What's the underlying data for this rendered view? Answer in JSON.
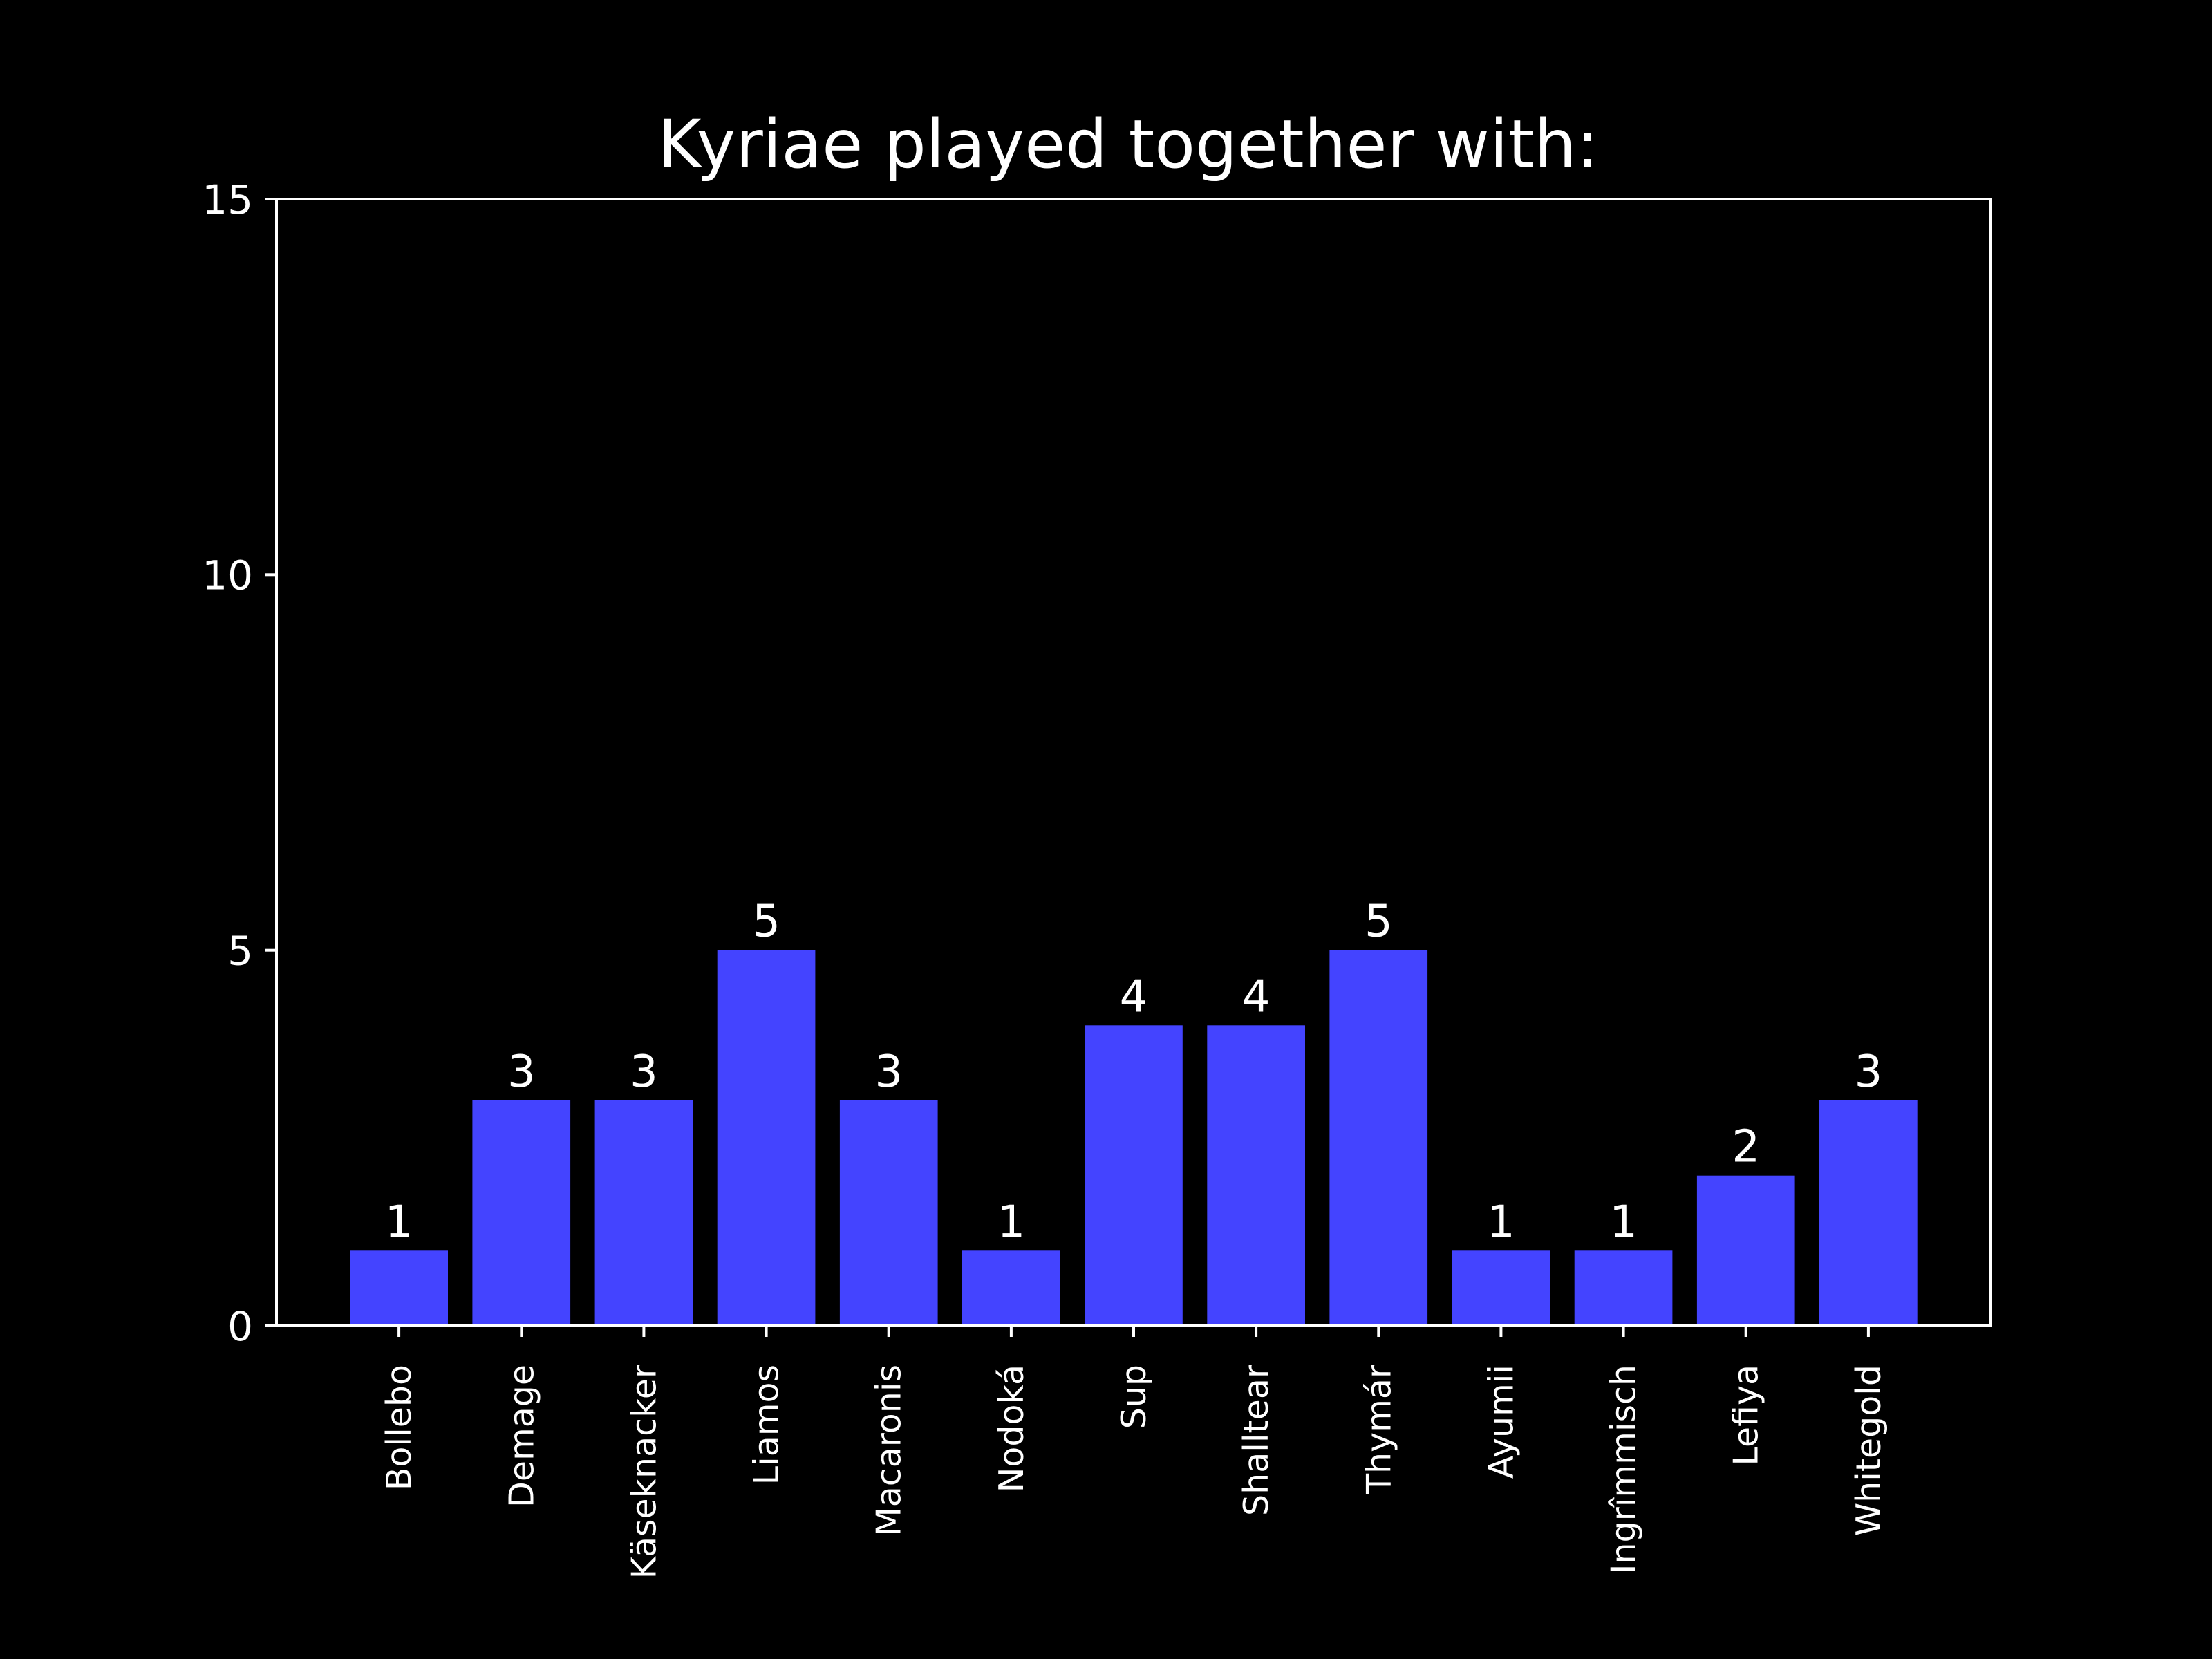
{
  "chart_data": {
    "type": "bar",
    "title": "Kyriae played together with:",
    "xlabel": "",
    "ylabel": "",
    "categories": [
      "Bollebo",
      "Demage",
      "Käseknacker",
      "Liamos",
      "Macaronis",
      "Nodoká",
      "Sup",
      "Shalltear",
      "Thymár",
      "Ayumii",
      "Ingrîmmisch",
      "Lefiya",
      "Whitegold"
    ],
    "values": [
      1,
      3,
      3,
      5,
      3,
      1,
      4,
      4,
      5,
      1,
      1,
      2,
      3
    ],
    "ylim": [
      0,
      15
    ],
    "yticks": [
      0,
      5,
      10,
      15
    ],
    "grid": false,
    "legend": "none",
    "colors": {
      "background": "#000000",
      "bar": "#4444ff",
      "text": "#ffffff",
      "axes": "#ffffff"
    }
  }
}
